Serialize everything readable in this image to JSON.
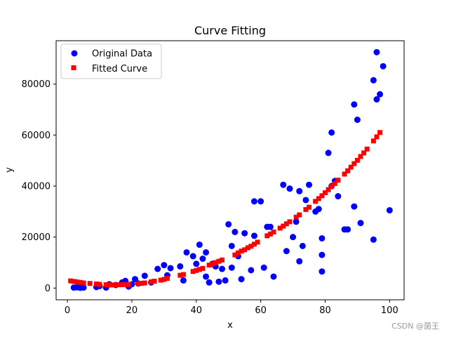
{
  "chart_data": {
    "type": "scatter",
    "title": "Curve Fitting",
    "xlabel": "x",
    "ylabel": "y",
    "xlim": [
      -3.5,
      104.5
    ],
    "ylim": [
      -4600,
      97000
    ],
    "xticks": [
      0,
      20,
      40,
      60,
      80,
      100
    ],
    "yticks": [
      0,
      20000,
      40000,
      60000,
      80000
    ],
    "grid": false,
    "legend_position": "top-left",
    "series": [
      {
        "name": "Original Data",
        "color": "#0000ff",
        "marker": "circle",
        "points": [
          [
            2,
            200
          ],
          [
            3,
            300
          ],
          [
            4,
            100
          ],
          [
            5,
            200
          ],
          [
            9,
            400
          ],
          [
            10,
            800
          ],
          [
            12,
            200
          ],
          [
            13,
            1500
          ],
          [
            15,
            1200
          ],
          [
            17,
            2200
          ],
          [
            18,
            2800
          ],
          [
            19,
            600
          ],
          [
            20,
            1500
          ],
          [
            21,
            3500
          ],
          [
            22,
            1800
          ],
          [
            24,
            4800
          ],
          [
            26,
            2200
          ],
          [
            28,
            7500
          ],
          [
            30,
            9000
          ],
          [
            31,
            5000
          ],
          [
            32,
            7800
          ],
          [
            35,
            8500
          ],
          [
            36,
            3000
          ],
          [
            37,
            14000
          ],
          [
            39,
            12500
          ],
          [
            40,
            9500
          ],
          [
            41,
            17000
          ],
          [
            42,
            11500
          ],
          [
            43,
            14000
          ],
          [
            43,
            4500
          ],
          [
            44,
            2200
          ],
          [
            45,
            9500
          ],
          [
            46,
            8500
          ],
          [
            47,
            2500
          ],
          [
            48,
            7500
          ],
          [
            49,
            3000
          ],
          [
            50,
            25000
          ],
          [
            51,
            16500
          ],
          [
            51,
            8000
          ],
          [
            52,
            22000
          ],
          [
            53,
            12500
          ],
          [
            54,
            3500
          ],
          [
            55,
            21500
          ],
          [
            57,
            7000
          ],
          [
            58,
            34000
          ],
          [
            58,
            20500
          ],
          [
            60,
            34000
          ],
          [
            61,
            8000
          ],
          [
            62,
            24000
          ],
          [
            63,
            24000
          ],
          [
            64,
            4500
          ],
          [
            67,
            40500
          ],
          [
            68,
            14500
          ],
          [
            69,
            39000
          ],
          [
            70,
            20000
          ],
          [
            71,
            26000
          ],
          [
            72,
            10500
          ],
          [
            72,
            38000
          ],
          [
            73,
            16500
          ],
          [
            74,
            34500
          ],
          [
            75,
            40500
          ],
          [
            77,
            30000
          ],
          [
            78,
            31000
          ],
          [
            79,
            19500
          ],
          [
            79,
            13000
          ],
          [
            79,
            6500
          ],
          [
            81,
            53000
          ],
          [
            82,
            61000
          ],
          [
            82,
            40000
          ],
          [
            83,
            42000
          ],
          [
            84,
            36000
          ],
          [
            86,
            23000
          ],
          [
            87,
            23000
          ],
          [
            89,
            72000
          ],
          [
            89,
            32000
          ],
          [
            90,
            66000
          ],
          [
            91,
            25500
          ],
          [
            95,
            81500
          ],
          [
            95,
            19000
          ],
          [
            96,
            92500
          ],
          [
            96,
            74000
          ],
          [
            97,
            76000
          ],
          [
            98,
            87000
          ],
          [
            100,
            30500
          ]
        ]
      },
      {
        "name": "Fitted Curve",
        "color": "#ff0000",
        "marker": "square",
        "points": [
          [
            1,
            2800
          ],
          [
            2,
            2600
          ],
          [
            3,
            2400
          ],
          [
            4,
            2200
          ],
          [
            5,
            2000
          ],
          [
            7,
            1800
          ],
          [
            9,
            1600
          ],
          [
            10,
            1450
          ],
          [
            12,
            1300
          ],
          [
            13,
            1250
          ],
          [
            14,
            1200
          ],
          [
            15,
            1250
          ],
          [
            16,
            1300
          ],
          [
            17,
            1350
          ],
          [
            18,
            1400
          ],
          [
            19,
            1450
          ],
          [
            22,
            1700
          ],
          [
            23,
            1850
          ],
          [
            24,
            2000
          ],
          [
            26,
            2400
          ],
          [
            27,
            2700
          ],
          [
            29,
            3100
          ],
          [
            30,
            3400
          ],
          [
            31,
            3800
          ],
          [
            35,
            5000
          ],
          [
            36,
            5300
          ],
          [
            39,
            6500
          ],
          [
            40,
            6900
          ],
          [
            41,
            7300
          ],
          [
            42,
            7700
          ],
          [
            44,
            9000
          ],
          [
            45,
            9400
          ],
          [
            46,
            10000
          ],
          [
            47,
            10500
          ],
          [
            48,
            11000
          ],
          [
            52,
            13000
          ],
          [
            53,
            13800
          ],
          [
            54,
            14500
          ],
          [
            55,
            15000
          ],
          [
            56,
            15800
          ],
          [
            57,
            16400
          ],
          [
            58,
            17200
          ],
          [
            59,
            18000
          ],
          [
            62,
            20500
          ],
          [
            63,
            21200
          ],
          [
            64,
            22000
          ],
          [
            66,
            23500
          ],
          [
            67,
            24300
          ],
          [
            68,
            25200
          ],
          [
            69,
            26000
          ],
          [
            71,
            27800
          ],
          [
            72,
            28700
          ],
          [
            74,
            30800
          ],
          [
            75,
            31700
          ],
          [
            77,
            34000
          ],
          [
            78,
            35100
          ],
          [
            79,
            36200
          ],
          [
            80,
            37400
          ],
          [
            81,
            38600
          ],
          [
            82,
            39800
          ],
          [
            83,
            41000
          ],
          [
            84,
            42300
          ],
          [
            86,
            44700
          ],
          [
            87,
            46000
          ],
          [
            88,
            47400
          ],
          [
            89,
            48800
          ],
          [
            90,
            50100
          ],
          [
            91,
            51600
          ],
          [
            92,
            53000
          ],
          [
            93,
            54500
          ],
          [
            95,
            57700
          ],
          [
            96,
            59300
          ],
          [
            97,
            61000
          ]
        ]
      }
    ]
  },
  "watermark": "CSDN @菌王"
}
